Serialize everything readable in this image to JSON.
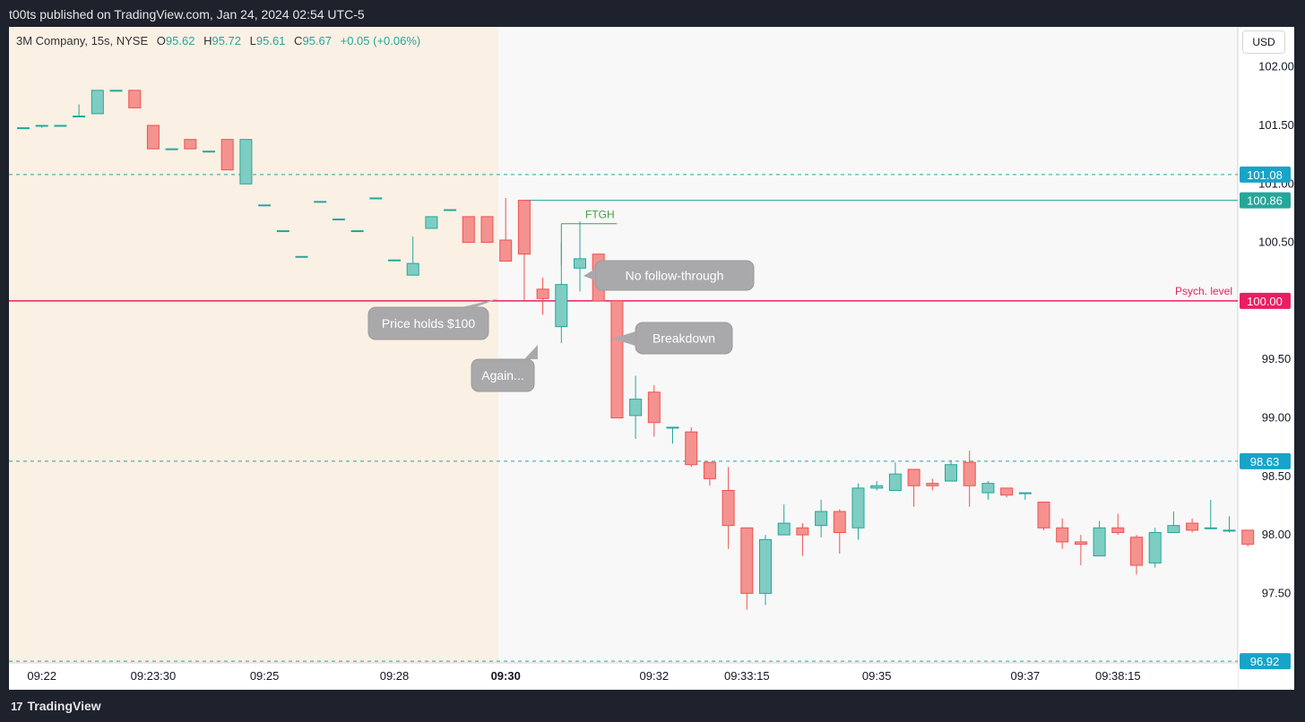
{
  "header": {
    "published": "t00ts published on TradingView.com, Jan 24, 2024 02:54 UTC-5"
  },
  "footer": {
    "brand": "TradingView",
    "brand_mark": "17"
  },
  "legend": {
    "symbol": "3M Company, 15s, NYSE",
    "o_label": "O",
    "o": "95.62",
    "h_label": "H",
    "h": "95.72",
    "l_label": "L",
    "l": "95.61",
    "c_label": "C",
    "c": "95.67",
    "change": "+0.05 (+0.06%)"
  },
  "currency_button": "USD",
  "colors": {
    "up": "#26a69a",
    "up_fill": "#7fcdc2",
    "down": "#ef5350",
    "down_fill": "#f4928f",
    "psych": "#e91e63",
    "dashed": "#26a69a",
    "tag_cyan": "#17a4c8",
    "premarket_bg": "#fbf0e4",
    "callout": "#a9a9ac"
  },
  "chart_data": {
    "type": "candlestick",
    "y_range": [
      96.92,
      102.2
    ],
    "y_ticks": [
      "102.00",
      "101.50",
      "101.00",
      "100.50",
      "99.50",
      "99.00",
      "98.50",
      "98.00",
      "97.50"
    ],
    "x_ticks": [
      {
        "label": "09:22",
        "bar": 1,
        "bold": false
      },
      {
        "label": "09:23:30",
        "bar": 7,
        "bold": false
      },
      {
        "label": "09:25",
        "bar": 13,
        "bold": false
      },
      {
        "label": "09:28",
        "bar": 20,
        "bold": false
      },
      {
        "label": "09:30",
        "bar": 26,
        "bold": true
      },
      {
        "label": "09:32",
        "bar": 34,
        "bold": false
      },
      {
        "label": "09:33:15",
        "bar": 39,
        "bold": false
      },
      {
        "label": "09:35",
        "bar": 46,
        "bold": false
      },
      {
        "label": "09:37",
        "bar": 54,
        "bold": false
      },
      {
        "label": "09:38:15",
        "bar": 59,
        "bold": false
      }
    ],
    "premarket_end_bar": 25.6,
    "candles": [
      {
        "o": 101.48,
        "h": 101.48,
        "l": 101.48,
        "c": 101.48
      },
      {
        "o": 101.5,
        "h": 101.5,
        "l": 101.48,
        "c": 101.5
      },
      {
        "o": 101.5,
        "h": 101.5,
        "l": 101.5,
        "c": 101.5
      },
      {
        "o": 101.58,
        "h": 101.68,
        "l": 101.58,
        "c": 101.58
      },
      {
        "o": 101.6,
        "h": 101.8,
        "l": 101.6,
        "c": 101.8
      },
      {
        "o": 101.8,
        "h": 101.8,
        "l": 101.8,
        "c": 101.8
      },
      {
        "o": 101.8,
        "h": 101.8,
        "l": 101.65,
        "c": 101.65
      },
      {
        "o": 101.5,
        "h": 101.5,
        "l": 101.3,
        "c": 101.3
      },
      {
        "o": 101.3,
        "h": 101.3,
        "l": 101.3,
        "c": 101.3
      },
      {
        "o": 101.38,
        "h": 101.38,
        "l": 101.3,
        "c": 101.3
      },
      {
        "o": 101.28,
        "h": 101.28,
        "l": 101.28,
        "c": 101.28
      },
      {
        "o": 101.38,
        "h": 101.38,
        "l": 101.12,
        "c": 101.12
      },
      {
        "o": 101.0,
        "h": 101.38,
        "l": 101.0,
        "c": 101.38
      },
      {
        "o": 100.82,
        "h": 100.82,
        "l": 100.82,
        "c": 100.82
      },
      {
        "o": 100.6,
        "h": 100.6,
        "l": 100.6,
        "c": 100.6
      },
      {
        "o": 100.38,
        "h": 100.38,
        "l": 100.38,
        "c": 100.38
      },
      {
        "o": 100.85,
        "h": 100.85,
        "l": 100.85,
        "c": 100.85
      },
      {
        "o": 100.7,
        "h": 100.7,
        "l": 100.7,
        "c": 100.7
      },
      {
        "o": 100.6,
        "h": 100.6,
        "l": 100.6,
        "c": 100.6
      },
      {
        "o": 100.88,
        "h": 100.88,
        "l": 100.88,
        "c": 100.88
      },
      {
        "o": 100.35,
        "h": 100.35,
        "l": 100.35,
        "c": 100.35
      },
      {
        "o": 100.22,
        "h": 100.55,
        "l": 100.22,
        "c": 100.32
      },
      {
        "o": 100.62,
        "h": 100.72,
        "l": 100.62,
        "c": 100.72
      },
      {
        "o": 100.78,
        "h": 100.78,
        "l": 100.78,
        "c": 100.78
      },
      {
        "o": 100.72,
        "h": 100.72,
        "l": 100.5,
        "c": 100.5
      },
      {
        "o": 100.72,
        "h": 100.72,
        "l": 100.5,
        "c": 100.5
      },
      {
        "o": 100.52,
        "h": 100.88,
        "l": 100.34,
        "c": 100.34
      },
      {
        "o": 100.86,
        "h": 100.86,
        "l": 100.0,
        "c": 100.4
      },
      {
        "o": 100.1,
        "h": 100.2,
        "l": 99.88,
        "c": 100.02
      },
      {
        "o": 99.78,
        "h": 100.5,
        "l": 99.64,
        "c": 100.14
      },
      {
        "o": 100.28,
        "h": 100.68,
        "l": 100.08,
        "c": 100.36
      },
      {
        "o": 100.4,
        "h": 100.4,
        "l": 100.0,
        "c": 100.0
      },
      {
        "o": 100.0,
        "h": 100.0,
        "l": 99.0,
        "c": 99.0
      },
      {
        "o": 99.02,
        "h": 99.36,
        "l": 98.82,
        "c": 99.16
      },
      {
        "o": 99.22,
        "h": 99.28,
        "l": 98.84,
        "c": 98.96
      },
      {
        "o": 98.92,
        "h": 98.92,
        "l": 98.78,
        "c": 98.92
      },
      {
        "o": 98.88,
        "h": 98.92,
        "l": 98.58,
        "c": 98.6
      },
      {
        "o": 98.62,
        "h": 98.62,
        "l": 98.42,
        "c": 98.48
      },
      {
        "o": 98.38,
        "h": 98.58,
        "l": 97.88,
        "c": 98.08
      },
      {
        "o": 98.06,
        "h": 98.06,
        "l": 97.36,
        "c": 97.5
      },
      {
        "o": 97.5,
        "h": 98.0,
        "l": 97.4,
        "c": 97.96
      },
      {
        "o": 98.0,
        "h": 98.26,
        "l": 98.0,
        "c": 98.1
      },
      {
        "o": 98.06,
        "h": 98.1,
        "l": 97.82,
        "c": 98.0
      },
      {
        "o": 98.08,
        "h": 98.3,
        "l": 97.98,
        "c": 98.2
      },
      {
        "o": 98.2,
        "h": 98.22,
        "l": 97.84,
        "c": 98.02
      },
      {
        "o": 98.06,
        "h": 98.44,
        "l": 97.96,
        "c": 98.4
      },
      {
        "o": 98.4,
        "h": 98.46,
        "l": 98.38,
        "c": 98.42
      },
      {
        "o": 98.38,
        "h": 98.62,
        "l": 98.38,
        "c": 98.52
      },
      {
        "o": 98.56,
        "h": 98.56,
        "l": 98.24,
        "c": 98.42
      },
      {
        "o": 98.44,
        "h": 98.48,
        "l": 98.38,
        "c": 98.42
      },
      {
        "o": 98.46,
        "h": 98.64,
        "l": 98.46,
        "c": 98.6
      },
      {
        "o": 98.62,
        "h": 98.72,
        "l": 98.24,
        "c": 98.42
      },
      {
        "o": 98.36,
        "h": 98.46,
        "l": 98.3,
        "c": 98.44
      },
      {
        "o": 98.4,
        "h": 98.4,
        "l": 98.32,
        "c": 98.34
      },
      {
        "o": 98.36,
        "h": 98.36,
        "l": 98.3,
        "c": 98.36
      },
      {
        "o": 98.28,
        "h": 98.28,
        "l": 98.04,
        "c": 98.06
      },
      {
        "o": 98.06,
        "h": 98.14,
        "l": 97.88,
        "c": 97.94
      },
      {
        "o": 97.94,
        "h": 98.0,
        "l": 97.74,
        "c": 97.92
      },
      {
        "o": 97.82,
        "h": 98.12,
        "l": 97.82,
        "c": 98.06
      },
      {
        "o": 98.06,
        "h": 98.18,
        "l": 98.0,
        "c": 98.02
      },
      {
        "o": 97.98,
        "h": 98.0,
        "l": 97.66,
        "c": 97.74
      },
      {
        "o": 97.76,
        "h": 98.06,
        "l": 97.72,
        "c": 98.02
      },
      {
        "o": 98.02,
        "h": 98.2,
        "l": 98.02,
        "c": 98.08
      },
      {
        "o": 98.1,
        "h": 98.14,
        "l": 98.02,
        "c": 98.04
      },
      {
        "o": 98.06,
        "h": 98.3,
        "l": 98.06,
        "c": 98.06
      },
      {
        "o": 98.04,
        "h": 98.16,
        "l": 98.02,
        "c": 98.04
      },
      {
        "o": 98.04,
        "h": 98.04,
        "l": 97.9,
        "c": 97.92
      }
    ],
    "hlines": [
      {
        "price": 101.08,
        "label": "101.08",
        "style": "dashed",
        "tag": "cyan"
      },
      {
        "price": 98.63,
        "label": "98.63",
        "style": "dashed",
        "tag": "cyan"
      },
      {
        "price": 96.92,
        "label": "96.92",
        "style": "dashed",
        "tag": "cyan"
      },
      {
        "price": 100.0,
        "label": "100.00",
        "style": "solid",
        "tag": "psych",
        "note": "Psych. level"
      }
    ],
    "ray": {
      "price": 100.86,
      "label": "100.86",
      "from_bar": 27
    },
    "ftgh": {
      "label": "FTGH",
      "price": 100.66,
      "from_bar": 29,
      "to_bar": 32
    },
    "callouts": [
      {
        "text": "Price holds $100"
      },
      {
        "text": "Again..."
      },
      {
        "text": "No follow-through"
      },
      {
        "text": "Breakdown"
      }
    ]
  }
}
